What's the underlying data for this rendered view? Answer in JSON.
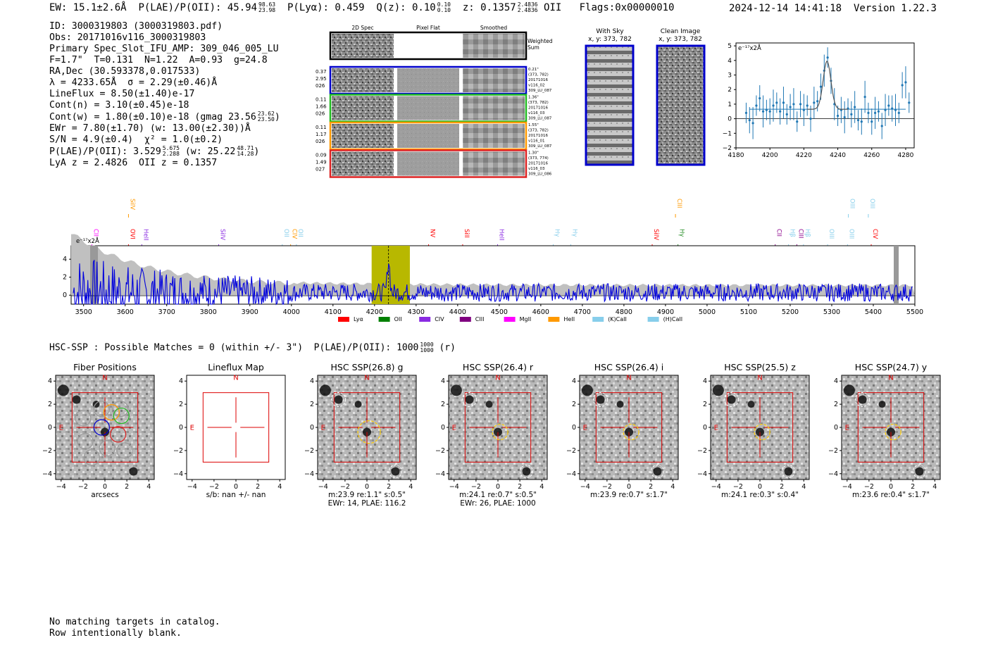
{
  "header": {
    "ew": "EW: 15.1±2.6Å",
    "plae": "P(LAE)/P(OII): 45.94",
    "plae_hi": "98.63",
    "plae_lo": "23.98",
    "plya": "P(Lyα): 0.459",
    "qz": "Q(z): 0.10",
    "qz_hi": "0.10",
    "qz_lo": "0.10",
    "z": "z: 0.1357",
    "z_hi": "2.4836",
    "z_lo": "2.4836",
    "z_line": "OII",
    "flags": "Flags:0x00000010",
    "datetime": "2024-12-14 14:41:18",
    "version": "Version 1.22.3"
  },
  "info": {
    "id": "ID: 3000319803 (3000319803.pdf)",
    "obs": "Obs: 20171016v116_3000319803",
    "primary": "Primary Spec_Slot_IFU_AMP: 309_046_005_LU",
    "params": "F=1.7\"  T=0.131  N=1.22  A=0.93  g=24.8",
    "radec": "RA,Dec (30.593378,0.017533)",
    "lambda": "λ = 4233.65Å  σ = 2.29(±0.46)Å",
    "lineflux": "LineFlux = 8.50(±1.40)e-17",
    "contn": "Cont(n) = 3.10(±0.45)e-18",
    "contw": "Cont(w) = 1.80(±0.10)e-18 (gmag 23.56",
    "contw_hi": "23.62",
    "contw_lo": "23.50",
    "ewr": "EWr = 7.80(±1.70) (w: 13.00(±2.30))Å",
    "sn": "S/N = 4.9(±0.4)  χ² = 1.0(±0.2)",
    "plae2": "P(LAE)/P(OII): 3.529",
    "plae2_hi": "5.675",
    "plae2_lo": "2.288",
    "plae2_w": "(w: 25.22",
    "plae2_w_hi": "48.71",
    "plae2_w_lo": "14.28",
    "lyaz": "LyA z = 2.4826  OII z = 0.1357"
  },
  "cutouts": {
    "col_2d": "2D Spec",
    "col_flat": "Pixel Flat",
    "col_smooth": "Smoothed",
    "weighted": "Weighted",
    "sum": "Sum",
    "rows": [
      {
        "color": "#0000cc",
        "left": [
          "0.37",
          "2.95",
          "026"
        ],
        "right": [
          "0.21\"",
          "(373, 782)",
          "20171016",
          "v116_02",
          "309_LU_087"
        ]
      },
      {
        "color": "#22bb22",
        "left": [
          "0.11",
          "1.66",
          "026"
        ],
        "right": [
          "1.36\"",
          "(373, 782)",
          "20171016",
          "v116_03",
          "309_LU_087"
        ]
      },
      {
        "color": "#ff9900",
        "left": [
          "0.11",
          "1.17",
          "026"
        ],
        "right": [
          "1.55\"",
          "(373, 782)",
          "20171016",
          "v116_01",
          "309_LU_087"
        ]
      },
      {
        "color": "#dd2222",
        "left": [
          "0.09",
          "1.49",
          "027"
        ],
        "right": [
          "1.30\"",
          "(373, 774)",
          "20171016",
          "v116_03",
          "309_LU_086"
        ]
      }
    ],
    "with_sky": "With Sky",
    "with_sky_xy": "x, y: 373, 782",
    "clean": "Clean Image",
    "clean_xy": "x, y: 373, 782"
  },
  "zoom_chart": {
    "unit": "e⁻¹⁷x2Å",
    "xticks": [
      "4180",
      "4200",
      "4220",
      "4240",
      "4260",
      "4280"
    ],
    "yticks": [
      "5",
      "4",
      "3",
      "2",
      "1",
      "0",
      "−1",
      "−2"
    ]
  },
  "spectrum": {
    "unit": "e⁻¹⁷x2Å",
    "xticks": [
      "3500",
      "3600",
      "3700",
      "3800",
      "3900",
      "4000",
      "4100",
      "4200",
      "4300",
      "4400",
      "4500",
      "4600",
      "4700",
      "4800",
      "4900",
      "5000",
      "5100",
      "5200",
      "5300",
      "5400",
      "5500"
    ],
    "yticks": [
      "4",
      "2",
      "0"
    ],
    "line_labels": [
      {
        "text": "CII",
        "w": 3520,
        "color": "#ff00ff",
        "row": 0
      },
      {
        "text": "SiIV",
        "w": 3608,
        "color": "#ff9900",
        "row": 2
      },
      {
        "text": "OVI",
        "w": 3608,
        "color": "#ff0000",
        "row": 0
      },
      {
        "text": "HeII",
        "w": 3640,
        "color": "#8a2be2",
        "row": 0
      },
      {
        "text": "SiIV",
        "w": 3825,
        "color": "#8a2be2",
        "row": 0
      },
      {
        "text": "OII",
        "w": 3978,
        "color": "#87ceeb",
        "row": 0
      },
      {
        "text": "CIV",
        "w": 3998,
        "color": "#ff9900",
        "row": 0
      },
      {
        "text": "OII",
        "w": 4012,
        "color": "#87ceeb",
        "row": 0
      },
      {
        "text": "NV",
        "w": 4330,
        "color": "#ff0000",
        "row": 0
      },
      {
        "text": "SiII",
        "w": 4412,
        "color": "#ff0000",
        "row": 0
      },
      {
        "text": "HeII",
        "w": 4496,
        "color": "#8a2be2",
        "row": 0
      },
      {
        "text": "Hγ",
        "w": 4630,
        "color": "#87ceeb",
        "row": 0
      },
      {
        "text": "Hγ",
        "w": 4672,
        "color": "#87ceeb",
        "row": 0
      },
      {
        "text": "SiIV",
        "w": 4868,
        "color": "#ff0000",
        "row": 0
      },
      {
        "text": "CIII",
        "w": 4924,
        "color": "#ff9900",
        "row": 2
      },
      {
        "text": "Hγ",
        "w": 4930,
        "color": "#228b22",
        "row": 0
      },
      {
        "text": "CII",
        "w": 5164,
        "color": "#8b008b",
        "row": 0
      },
      {
        "text": "Hβ",
        "w": 5196,
        "color": "#87ceeb",
        "row": 0
      },
      {
        "text": "CIII",
        "w": 5216,
        "color": "#8b008b",
        "row": 0
      },
      {
        "text": "Hβ",
        "w": 5232,
        "color": "#87ceeb",
        "row": 0
      },
      {
        "text": "OIII",
        "w": 5290,
        "color": "#87ceeb",
        "row": 0
      },
      {
        "text": "OIII",
        "w": 5338,
        "color": "#87ceeb",
        "row": 0
      },
      {
        "text": "OIII",
        "w": 5340,
        "color": "#87ceeb",
        "row": 2
      },
      {
        "text": "OIII",
        "w": 5388,
        "color": "#87ceeb",
        "row": 2
      },
      {
        "text": "CIV",
        "w": 5395,
        "color": "#ff0000",
        "row": 0
      }
    ],
    "legend": [
      {
        "label": "Lyα",
        "color": "#ff0000"
      },
      {
        "label": "OII",
        "color": "#008000"
      },
      {
        "label": "CIV",
        "color": "#8a2be2"
      },
      {
        "label": "CIII",
        "color": "#800080"
      },
      {
        "label": "MgII",
        "color": "#ff00ff"
      },
      {
        "label": "HeII",
        "color": "#ff9900"
      },
      {
        "label": "(K)CaII",
        "color": "#87ceeb"
      },
      {
        "label": "(H)CaII",
        "color": "#87ceeb"
      }
    ]
  },
  "hsc_line": "HSC-SSP : Possible Matches = 0 (within +/- 3\")  P(LAE)/P(OII): 1000",
  "hsc_line_hi": "1000",
  "hsc_line_lo": "1000",
  "hsc_line_tail": "(r)",
  "panels": [
    {
      "title": "Fiber Positions",
      "xlabel": "arcsecs",
      "sub1": "",
      "sub2": ""
    },
    {
      "title": "Lineflux Map",
      "xlabel": "s/b: nan +/- nan",
      "sub1": "",
      "sub2": ""
    },
    {
      "title": "HSC SSP(26.8) g",
      "xlabel": "m:23.9  re:1.1\"  s:0.5\"",
      "sub2": "EWr: 14, PLAE: 116.2"
    },
    {
      "title": "HSC SSP(26.4) r",
      "xlabel": "m:24.1  re:0.7\"  s:0.5\"",
      "sub2": "EWr: 26, PLAE: 1000"
    },
    {
      "title": "HSC SSP(26.4) i",
      "xlabel": "m:23.9  re:0.7\"  s:1.7\"",
      "sub2": ""
    },
    {
      "title": "HSC SSP(25.5) z",
      "xlabel": "m:24.1  re:0.3\"  s:0.4\"",
      "sub2": ""
    },
    {
      "title": "HSC SSP(24.7) y",
      "xlabel": "m:23.6  re:0.4\"  s:1.7\"",
      "sub2": ""
    }
  ],
  "panel_axis": {
    "xticks": [
      "−4",
      "−2",
      "0",
      "2",
      "4"
    ],
    "yticks": [
      "4",
      "2",
      "0",
      "−2",
      "−4"
    ],
    "north": "N",
    "east": "E"
  },
  "footer": {
    "line1": "No matching targets in catalog.",
    "line2": "Row intentionally blank."
  },
  "chart_data": [
    {
      "type": "line",
      "title": "",
      "xlabel": "",
      "ylabel": "e⁻¹⁷x2Å",
      "xlim": [
        4180,
        4285
      ],
      "ylim": [
        -2,
        5.2
      ],
      "series": [
        {
          "x": [
            4186,
            4188,
            4190,
            4192,
            4194,
            4196,
            4198,
            4200,
            4202,
            4204,
            4206,
            4208,
            4210,
            4212,
            4214,
            4216,
            4218,
            4220,
            4222,
            4224,
            4226,
            4228,
            4230,
            4232,
            4234,
            4236,
            4238,
            4240,
            4242,
            4244,
            4246,
            4248,
            4250,
            4252,
            4254,
            4256,
            4258,
            4260,
            4262,
            4264,
            4266,
            4268,
            4270,
            4272,
            4274,
            4276,
            4278,
            4280,
            4282
          ],
          "y": [
            0.4,
            -0.1,
            -0.3,
            0.9,
            1.4,
            0.5,
            0.6,
            0.5,
            0.9,
            1.1,
            0.5,
            1.1,
            0.3,
            0.8,
            1.0,
            -0.2,
            1.0,
            0.6,
            0.9,
            0.0,
            1.1,
            1.2,
            2.2,
            3.3,
            4.2,
            2.6,
            1.0,
            0.2,
            0.6,
            0.1,
            0.7,
            0.3,
            0.8,
            -0.1,
            -0.2,
            1.5,
            0.4,
            -0.2,
            0.4,
            0.5,
            -0.5,
            0.6,
            0.9,
            0.7,
            0.6,
            0.4,
            2.3,
            2.5,
            1.1
          ]
        }
      ]
    },
    {
      "type": "line",
      "title": "",
      "xlabel": "",
      "ylabel": "e⁻¹⁷x2Å",
      "xlim": [
        3470,
        5500
      ],
      "ylim": [
        -1,
        5.5
      ],
      "highlight_band": [
        4193,
        4285
      ],
      "line_center": 4233.65
    }
  ]
}
